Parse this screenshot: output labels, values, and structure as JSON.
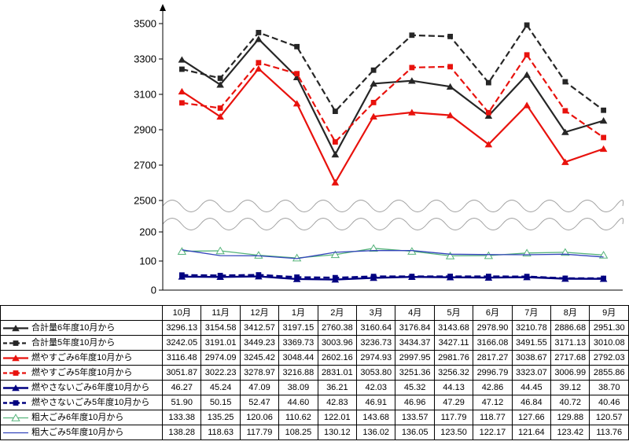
{
  "chart_data": {
    "type": "line",
    "title": "",
    "xlabel": "",
    "ylabel": "",
    "legend_position": "table-left",
    "grid": false,
    "categories": [
      "10月",
      "11月",
      "12月",
      "1月",
      "2月",
      "3月",
      "4月",
      "5月",
      "6月",
      "7月",
      "8月",
      "9月"
    ],
    "y_axis": {
      "broken": true,
      "upper": {
        "min": 2500,
        "max": 3500,
        "ticks": [
          3500,
          3300,
          3100,
          2900,
          2700,
          2500
        ]
      },
      "lower": {
        "min": 0,
        "max": 200,
        "ticks": [
          200,
          100,
          0
        ]
      }
    },
    "value_format": "0.00",
    "series": [
      {
        "name": "合計量6年度10月から",
        "color": "#262626",
        "line": "solid",
        "marker": "triangle",
        "width": 2.2,
        "values": [
          3296.13,
          3154.58,
          3412.57,
          3197.15,
          2760.38,
          3160.64,
          3176.84,
          3143.68,
          2978.9,
          3210.78,
          2886.68,
          2951.3
        ]
      },
      {
        "name": "合計量5年度10月から",
        "color": "#262626",
        "line": "dashed",
        "marker": "square",
        "width": 2.2,
        "values": [
          3242.05,
          3191.01,
          3449.23,
          3369.73,
          3003.96,
          3236.73,
          3434.37,
          3427.11,
          3166.08,
          3491.55,
          3171.13,
          3010.08
        ]
      },
      {
        "name": "燃やすごみ6年度10月から",
        "color": "#e8120d",
        "line": "solid",
        "marker": "triangle",
        "width": 2.2,
        "values": [
          3116.48,
          2974.09,
          3245.42,
          3048.44,
          2602.16,
          2974.93,
          2997.95,
          2981.76,
          2817.27,
          3038.67,
          2717.68,
          2792.03
        ]
      },
      {
        "name": "燃やすごみ5年度10月から",
        "color": "#e8120d",
        "line": "dashed",
        "marker": "square",
        "width": 2.2,
        "values": [
          3051.87,
          3022.23,
          3278.97,
          3216.88,
          2831.01,
          3053.8,
          3251.36,
          3256.32,
          2996.79,
          3323.07,
          3006.99,
          2855.86
        ]
      },
      {
        "name": "燃やさないごみ6年度10月から",
        "color": "#000080",
        "line": "solid",
        "marker": "triangle",
        "width": 2.4,
        "values": [
          46.27,
          45.24,
          47.09,
          38.09,
          36.21,
          42.03,
          45.32,
          44.13,
          42.86,
          44.45,
          39.12,
          38.7
        ]
      },
      {
        "name": "燃やさないごみ5年度10月から",
        "color": "#000080",
        "line": "dashed",
        "marker": "square",
        "width": 2.4,
        "values": [
          51.9,
          50.15,
          52.47,
          44.6,
          42.83,
          46.91,
          46.96,
          47.29,
          47.12,
          46.84,
          40.72,
          40.46
        ]
      },
      {
        "name": "粗大ごみ6年度10月から",
        "color": "#55b37a",
        "line": "solid",
        "marker": "triangle-open",
        "width": 1.3,
        "values": [
          133.38,
          135.25,
          120.06,
          110.62,
          122.01,
          143.68,
          133.57,
          117.79,
          118.77,
          127.66,
          129.88,
          120.57
        ]
      },
      {
        "name": "粗大ごみ5年度10月から",
        "color": "#3344bb",
        "line": "solid",
        "marker": "none",
        "width": 1.3,
        "values": [
          138.28,
          118.63,
          117.79,
          108.25,
          130.12,
          136.02,
          136.05,
          123.5,
          122.17,
          121.64,
          123.42,
          113.76
        ]
      }
    ]
  }
}
